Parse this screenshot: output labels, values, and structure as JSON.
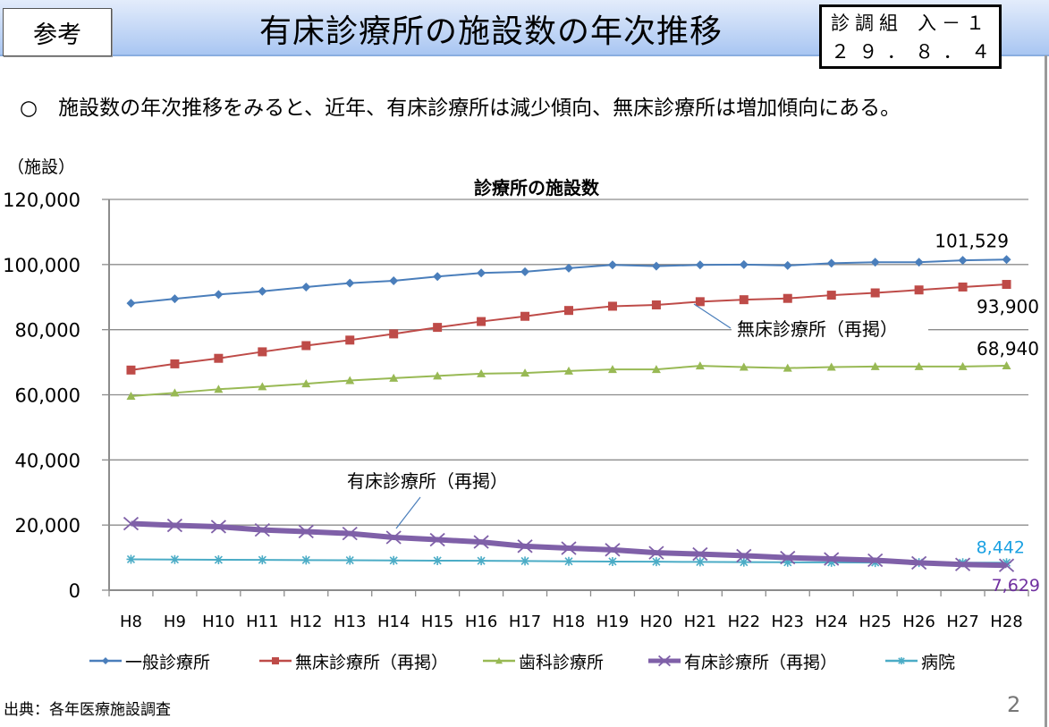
{
  "header": {
    "ref_label": "参考",
    "title": "有床診療所の施設数の年次推移",
    "doc_id": {
      "line1_left": "診調組",
      "line1_right": "入－１",
      "line2": [
        "２",
        "９",
        "．",
        "８",
        "．",
        "４"
      ]
    }
  },
  "summary": "○　施設数の年次推移をみると、近年、有床診療所は減少傾向、無床診療所は増加傾向にある。",
  "footer": {
    "source": "出典：各年医療施設調査",
    "page": "2"
  },
  "chart_data": {
    "type": "line",
    "title": "診療所の施設数",
    "ylabel": "（施設）",
    "xlabel": "",
    "ylim": [
      0,
      120000
    ],
    "yticks": [
      "0",
      "20,000",
      "40,000",
      "60,000",
      "80,000",
      "100,000",
      "120,000"
    ],
    "grid": true,
    "legend_position": "bottom",
    "categories": [
      "H8",
      "H9",
      "H10",
      "H11",
      "H12",
      "H13",
      "H14",
      "H15",
      "H16",
      "H17",
      "H18",
      "H19",
      "H20",
      "H21",
      "H22",
      "H23",
      "H24",
      "H25",
      "H26",
      "H27",
      "H28"
    ],
    "series": [
      {
        "name": "一般診療所",
        "color": "#4a7ebb",
        "marker": "diamond",
        "width": 2,
        "values": [
          88100,
          89500,
          90800,
          91800,
          93100,
          94300,
          95000,
          96300,
          97400,
          97800,
          98900,
          99900,
          99500,
          99900,
          100000,
          99700,
          100400,
          100700,
          100700,
          101300,
          101529
        ]
      },
      {
        "name": "無床診療所（再掲）",
        "color": "#be4b48",
        "marker": "square",
        "width": 2,
        "values": [
          67600,
          69500,
          71200,
          73200,
          75100,
          76800,
          78700,
          80700,
          82500,
          84100,
          85900,
          87200,
          87600,
          88600,
          89200,
          89600,
          90600,
          91300,
          92200,
          93100,
          93900
        ]
      },
      {
        "name": "歯科診療所",
        "color": "#98b954",
        "marker": "triangle",
        "width": 2,
        "values": [
          59600,
          60600,
          61700,
          62500,
          63400,
          64400,
          65100,
          65800,
          66500,
          66700,
          67300,
          67800,
          67800,
          68900,
          68500,
          68200,
          68500,
          68700,
          68700,
          68700,
          68940
        ]
      },
      {
        "name": "有床診療所（再掲）",
        "color": "#7f60a8",
        "marker": "x",
        "width": 6,
        "values": [
          20450,
          19900,
          19500,
          18500,
          18000,
          17400,
          16200,
          15500,
          14800,
          13500,
          12900,
          12400,
          11500,
          11100,
          10600,
          10000,
          9600,
          9200,
          8400,
          7900,
          7629
        ]
      },
      {
        "name": "病院",
        "color": "#4bacc6",
        "marker": "star",
        "width": 2,
        "values": [
          9490,
          9413,
          9333,
          9286,
          9239,
          9187,
          9122,
          9077,
          9026,
          8942,
          8862,
          8794,
          8739,
          8670,
          8605,
          8565,
          8540,
          8493,
          8480,
          8442,
          8442
        ]
      }
    ],
    "annotations": [
      {
        "text": "101,529",
        "series": "一般診療所",
        "color": "#000000"
      },
      {
        "text": "93,900",
        "series": "無床診療所（再掲）",
        "color": "#000000"
      },
      {
        "text": "68,940",
        "series": "歯科診療所",
        "color": "#000000"
      },
      {
        "text": "8,442",
        "series": "病院",
        "color": "#1ba1e2"
      },
      {
        "text": "7,629",
        "series": "有床診療所（再掲）",
        "color": "#7030a0"
      },
      {
        "text": "無床診療所（再掲）",
        "callout": true
      },
      {
        "text": "有床診療所（再掲）",
        "callout": true
      }
    ]
  }
}
